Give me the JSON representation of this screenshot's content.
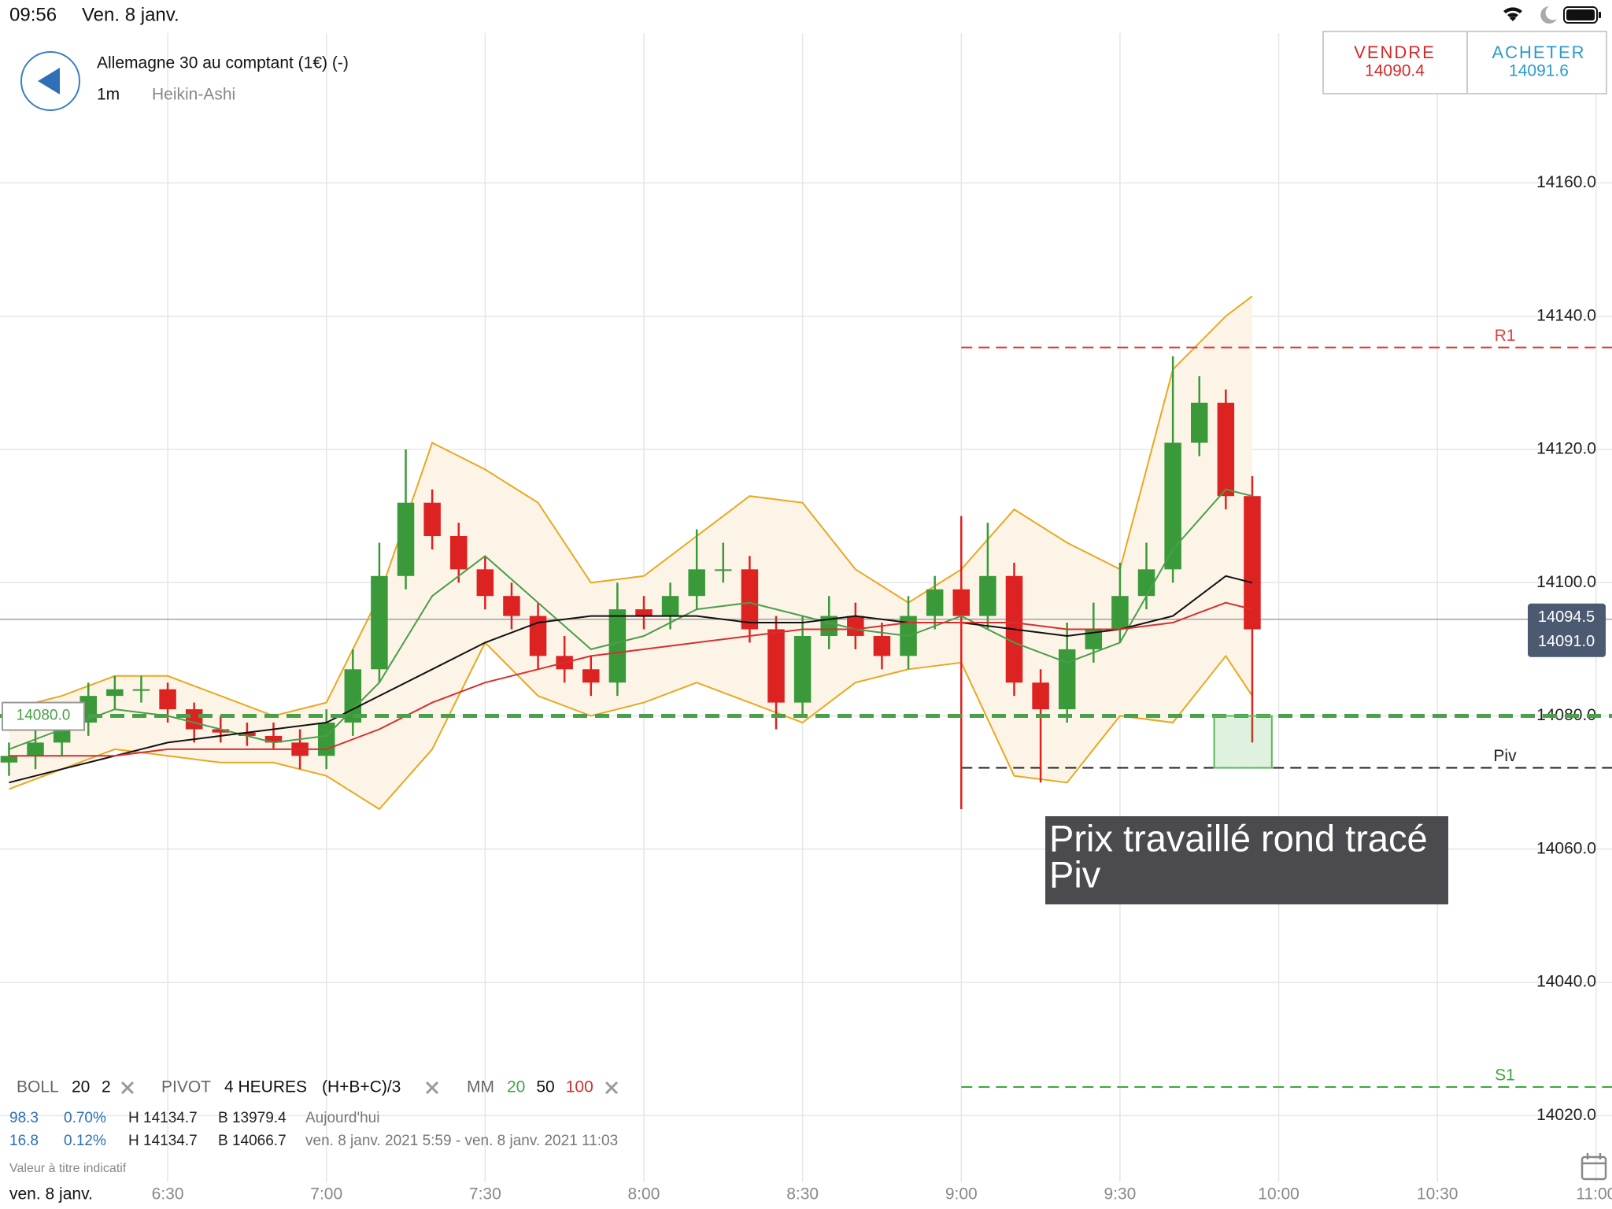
{
  "status_bar": {
    "time": "09:56",
    "date": "Ven. 8 janv."
  },
  "header": {
    "instrument": "Allemagne 30 au comptant (1€) (-)",
    "interval": "1m",
    "chart_style": "Heikin-Ashi",
    "sell": {
      "label": "VENDRE",
      "price": "14090.4"
    },
    "buy": {
      "label": "ACHETER",
      "price": "14091.6"
    }
  },
  "indicators_bar": {
    "boll": {
      "name": "BOLL",
      "period": "20",
      "deviation": "2"
    },
    "pivot": {
      "name": "PIVOT",
      "timeframe": "4 HEURES",
      "formula": "(H+B+C)/3"
    },
    "mm": {
      "name": "MM"
    }
  },
  "stats": [
    {
      "change": "98.3",
      "change_pct": "0.70%",
      "high": "H 14134.7",
      "low": "B 13979.4",
      "period": "Aujourd'hui"
    },
    {
      "change": "16.8",
      "change_pct": "0.12%",
      "high": "H 14134.7",
      "low": "B 14066.7",
      "period": "ven. 8 janv. 2021 5:59 - ven. 8 janv. 2021 11:03"
    }
  ],
  "footer": {
    "disclaimer": "Valeur à titre indicatif",
    "date": "ven. 8 janv."
  },
  "chart_data": {
    "type": "candlestick",
    "xlim": [
      358.3,
      663.0
    ],
    "ylim": [
      14010,
      14182.5
    ],
    "xticks": [
      {
        "value": 390,
        "label": "6:30"
      },
      {
        "value": 420,
        "label": "7:00"
      },
      {
        "value": 450,
        "label": "7:30"
      },
      {
        "value": 480,
        "label": "8:00"
      },
      {
        "value": 510,
        "label": "8:30"
      },
      {
        "value": 540,
        "label": "9:00"
      },
      {
        "value": 570,
        "label": "9:30"
      },
      {
        "value": 600,
        "label": "10:00"
      },
      {
        "value": 630,
        "label": "10:30"
      },
      {
        "value": 660,
        "label": "11:00"
      }
    ],
    "yticks": [
      {
        "value": 14020,
        "label": "14020.0"
      },
      {
        "value": 14040,
        "label": "14040.0"
      },
      {
        "value": 14060,
        "label": "14060.0"
      },
      {
        "value": 14080,
        "label": "14080.0"
      },
      {
        "value": 14100,
        "label": "14100.0"
      },
      {
        "value": 14120,
        "label": "14120.0"
      },
      {
        "value": 14140,
        "label": "14140.0"
      },
      {
        "value": 14160,
        "label": "14160.0"
      }
    ],
    "grid": true,
    "up_color": "#3a9a3a",
    "down_color": "#dd2222",
    "candles": {
      "x": [
        360,
        365,
        370,
        375,
        380,
        385,
        390,
        395,
        400,
        405,
        410,
        415,
        420,
        425,
        430,
        435,
        440,
        445,
        450,
        455,
        460,
        465,
        470,
        475,
        480,
        485,
        490,
        495,
        500,
        505,
        510,
        515,
        520,
        525,
        530,
        535,
        540,
        545,
        550,
        555,
        560,
        565,
        570,
        575,
        580,
        585,
        590,
        595
      ],
      "open": [
        14073,
        14074,
        14076,
        14079,
        14083,
        14084,
        14084,
        14081,
        14078,
        14077.5,
        14077,
        14076,
        14074,
        14079,
        14087,
        14101,
        14112,
        14107,
        14102,
        14098,
        14095,
        14089,
        14087,
        14085,
        14096,
        14095,
        14098,
        14102,
        14102,
        14093,
        14082,
        14092,
        14095,
        14092,
        14089,
        14095,
        14099,
        14095,
        14101,
        14085,
        14081,
        14090,
        14093,
        14098,
        14102,
        14121,
        14127,
        14113
      ],
      "high": [
        14076,
        14078,
        14081,
        14085,
        14086,
        14086,
        14085,
        14082,
        14080,
        14079,
        14079,
        14078,
        14081,
        14090,
        14106,
        14120,
        14114,
        14109,
        14104,
        14100,
        14097,
        14092,
        14089,
        14100,
        14098,
        14100,
        14108,
        14106,
        14104,
        14095,
        14095,
        14098,
        14097,
        14094,
        14098,
        14101,
        14110,
        14109,
        14103,
        14087,
        14094,
        14097,
        14103,
        14106,
        14134,
        14131,
        14129,
        14116
      ],
      "low": [
        14071,
        14072,
        14074,
        14077,
        14081,
        14082,
        14079,
        14076,
        14076,
        14075.5,
        14075,
        14072,
        14072,
        14077,
        14085,
        14099,
        14105,
        14100,
        14096,
        14093,
        14087,
        14085,
        14083,
        14083,
        14093,
        14093,
        14096,
        14100,
        14091,
        14078,
        14080,
        14090,
        14090,
        14087,
        14087,
        14093,
        14066,
        14093,
        14083,
        14070,
        14079,
        14088,
        14091,
        14096,
        14100,
        14119,
        14111,
        14076
      ],
      "close": [
        14074,
        14076,
        14079,
        14083,
        14084,
        14084,
        14081,
        14078,
        14077.5,
        14077,
        14076,
        14074,
        14079,
        14087,
        14101,
        14112,
        14107,
        14102,
        14098,
        14095,
        14089,
        14087,
        14085,
        14096,
        14095,
        14098,
        14102,
        14102,
        14093,
        14082,
        14092,
        14095,
        14092,
        14089,
        14095,
        14099,
        14095,
        14101,
        14085,
        14081,
        14090,
        14093,
        14098,
        14102,
        14121,
        14127,
        14113,
        14093
      ]
    },
    "indicator_x": [
      360,
      370,
      380,
      390,
      400,
      410,
      420,
      430,
      440,
      450,
      460,
      470,
      480,
      490,
      500,
      510,
      520,
      530,
      540,
      550,
      560,
      570,
      580,
      590,
      595
    ],
    "bollinger": {
      "color": "#e8a820",
      "fill": "#fdf4e8",
      "upper": [
        14081,
        14083,
        14086,
        14086,
        14083,
        14080,
        14082,
        14098,
        14121,
        14117,
        14112,
        14100,
        14101,
        14107,
        14113,
        14112,
        14102,
        14097,
        14102,
        14111,
        14106,
        14102,
        14132,
        14140,
        14143
      ],
      "lower": [
        14069,
        14072,
        14075,
        14074,
        14073,
        14073,
        14071,
        14066,
        14075,
        14091,
        14083,
        14080,
        14082,
        14085,
        14082,
        14079,
        14085,
        14087,
        14088,
        14071,
        14070,
        14080,
        14079,
        14089,
        14083
      ]
    },
    "ma_series": [
      {
        "name": "20",
        "color": "#4a9e4a",
        "values": [
          14075,
          14078,
          14081,
          14080,
          14078,
          14076,
          14077,
          14085,
          14098,
          14104,
          14097,
          14090,
          14092,
          14096,
          14097,
          14095,
          14093,
          14092,
          14095,
          14091,
          14088,
          14091,
          14105,
          14114,
          14113
        ]
      },
      {
        "name": "50",
        "color": "#111111",
        "values": [
          14070,
          14072,
          14074,
          14076,
          14077,
          14078,
          14079,
          14083,
          14087,
          14091,
          14094,
          14095,
          14095,
          14095,
          14094,
          14094,
          14095,
          14094,
          14094,
          14093,
          14092,
          14093,
          14095,
          14101,
          14100
        ]
      },
      {
        "name": "100",
        "color": "#d43030",
        "values": [
          14074,
          14074,
          14074,
          14075,
          14075,
          14075,
          14075,
          14078,
          14082,
          14085,
          14087,
          14089,
          14090,
          14091,
          14092,
          14093,
          14093,
          14094,
          14094,
          14094,
          14093,
          14093,
          14094,
          14097,
          14096
        ]
      }
    ],
    "pivots": {
      "start": 540,
      "levels": [
        {
          "name": "R1",
          "value": 14135.3,
          "color": "#e04040"
        },
        {
          "name": "Piv",
          "value": 14072.2,
          "color": "#222222"
        },
        {
          "name": "S1",
          "value": 14024.3,
          "color": "#3aa83a"
        }
      ]
    },
    "horizontal_line": {
      "value": 14080,
      "label": "14080.0",
      "color": "#4aa04a"
    },
    "last_price_line": 14094.5,
    "price_tags": {
      "values": [
        14094.5,
        14091.0
      ],
      "value_labels": [
        "14094.5",
        "14091.0"
      ]
    },
    "zone": {
      "x": [
        587.8,
        598.7
      ],
      "y": [
        14072.2,
        14080
      ]
    },
    "annotation": {
      "lines": [
        "Prix travaillé rond tracé",
        "Piv"
      ]
    }
  }
}
